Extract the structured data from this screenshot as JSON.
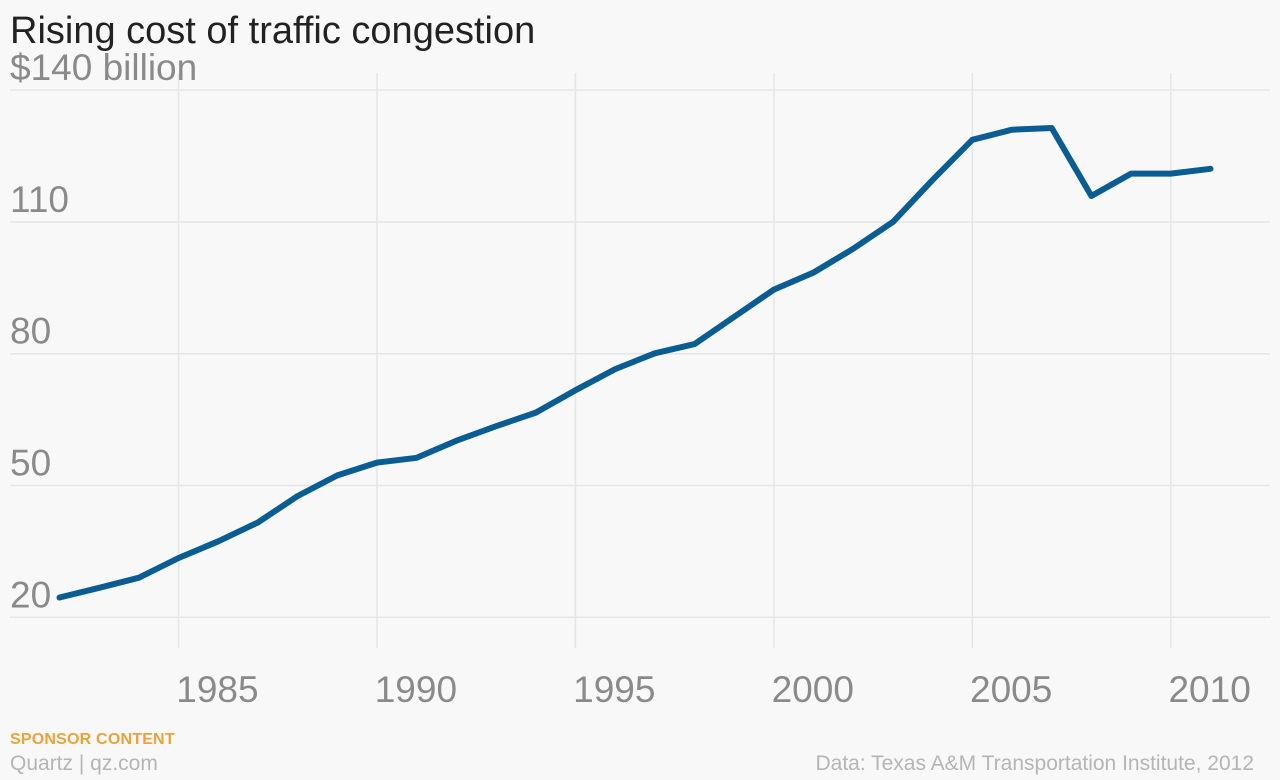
{
  "header": {
    "title": "Rising cost of traffic congestion"
  },
  "footer": {
    "sponsor_label": "SPONSOR CONTENT",
    "brand": "Quartz | qz.com",
    "source": "Data: Texas A&M Transportation Institute, 2012"
  },
  "colors": {
    "line": "#0a5d92",
    "grid": "#e6e6e6",
    "tick_text": "#8a8a8a",
    "sponsor": "#e8a33d"
  },
  "chart_data": {
    "type": "line",
    "title": "Rising cost of traffic congestion",
    "xlabel": "",
    "ylabel": "",
    "grid": true,
    "xlim": [
      1980.5,
      2012.5
    ],
    "ylim": [
      13,
      143
    ],
    "x_ticks": [
      1985,
      1990,
      1995,
      2000,
      2005,
      2010
    ],
    "x_tick_labels": [
      "1985",
      "1990",
      "1995",
      "2000",
      "2005",
      "2010"
    ],
    "y_ticks": [
      20,
      50,
      80,
      110,
      140
    ],
    "y_tick_labels": [
      "20",
      "50",
      "80",
      "110",
      "$140 billion"
    ],
    "series": [
      {
        "x": [
          1982,
          1983,
          1984,
          1985,
          1986,
          1987,
          1988,
          1989,
          1990,
          1991,
          1992,
          1993,
          1994,
          1995,
          1996,
          1997,
          1998,
          1999,
          2000,
          2001,
          2002,
          2003,
          2004,
          2005,
          2006,
          2007,
          2008,
          2009,
          2010,
          2011
        ],
        "values": [
          24.5,
          26.7,
          29.0,
          33.5,
          37.3,
          41.6,
          47.6,
          52.3,
          55.2,
          56.3,
          60.2,
          63.5,
          66.6,
          71.7,
          76.5,
          80.1,
          82.2,
          88.4,
          94.6,
          98.5,
          103.9,
          110.0,
          119.6,
          128.7,
          131.0,
          131.4,
          115.9,
          121.0,
          121.0,
          122.1
        ]
      }
    ]
  }
}
